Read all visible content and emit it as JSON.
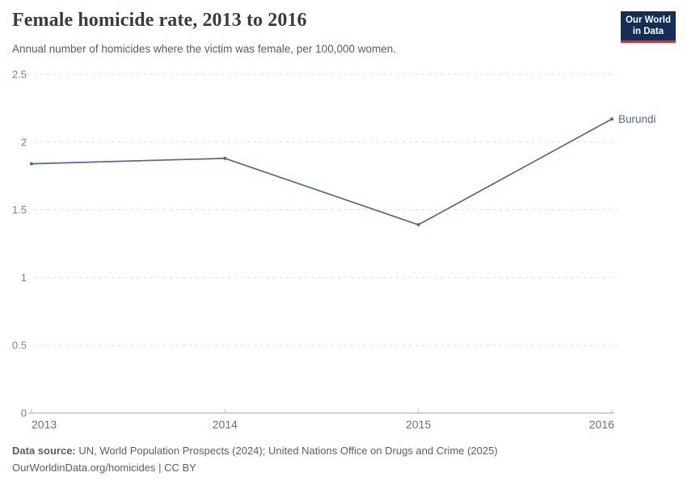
{
  "header": {
    "title": "Female homicide rate, 2013 to 2016",
    "subtitle": "Annual number of homicides where the victim was female, per 100,000 women.",
    "logo": {
      "line1": "Our World",
      "line2": "in Data"
    }
  },
  "footer": {
    "source_label": "Data source:",
    "source_text": "UN, World Population Prospects (2024); United Nations Office on Drugs and Crime (2025)",
    "license_line": "OurWorldinData.org/homicides | CC BY"
  },
  "colors": {
    "line": "#4c6a9c",
    "entity_label": "#4c6a9c",
    "grid": "#dcdcdc",
    "axis": "#a3a3a3",
    "tick": "#bdbdbd",
    "logo_bg": "#132f57",
    "logo_stripe": "#dc2e27"
  },
  "chart_data": {
    "type": "line",
    "title": "Female homicide rate, 2013 to 2016",
    "subtitle": "Annual number of homicides where the victim was female, per 100,000 women.",
    "x": [
      2013,
      2014,
      2015,
      2016
    ],
    "xtick_labels": [
      "2013",
      "2014",
      "2015",
      "2016"
    ],
    "series": [
      {
        "name": "Burundi",
        "values": [
          1.84,
          1.88,
          1.39,
          2.17
        ]
      }
    ],
    "ylim": [
      0,
      2.5
    ],
    "yticks": [
      0,
      0.5,
      1,
      1.5,
      2,
      2.5
    ],
    "ytick_labels": [
      "0",
      "0.5",
      "1",
      "1.5",
      "2",
      "2.5"
    ],
    "grid": "horizontal-dashed",
    "legend": "inline-entity-label-right"
  }
}
